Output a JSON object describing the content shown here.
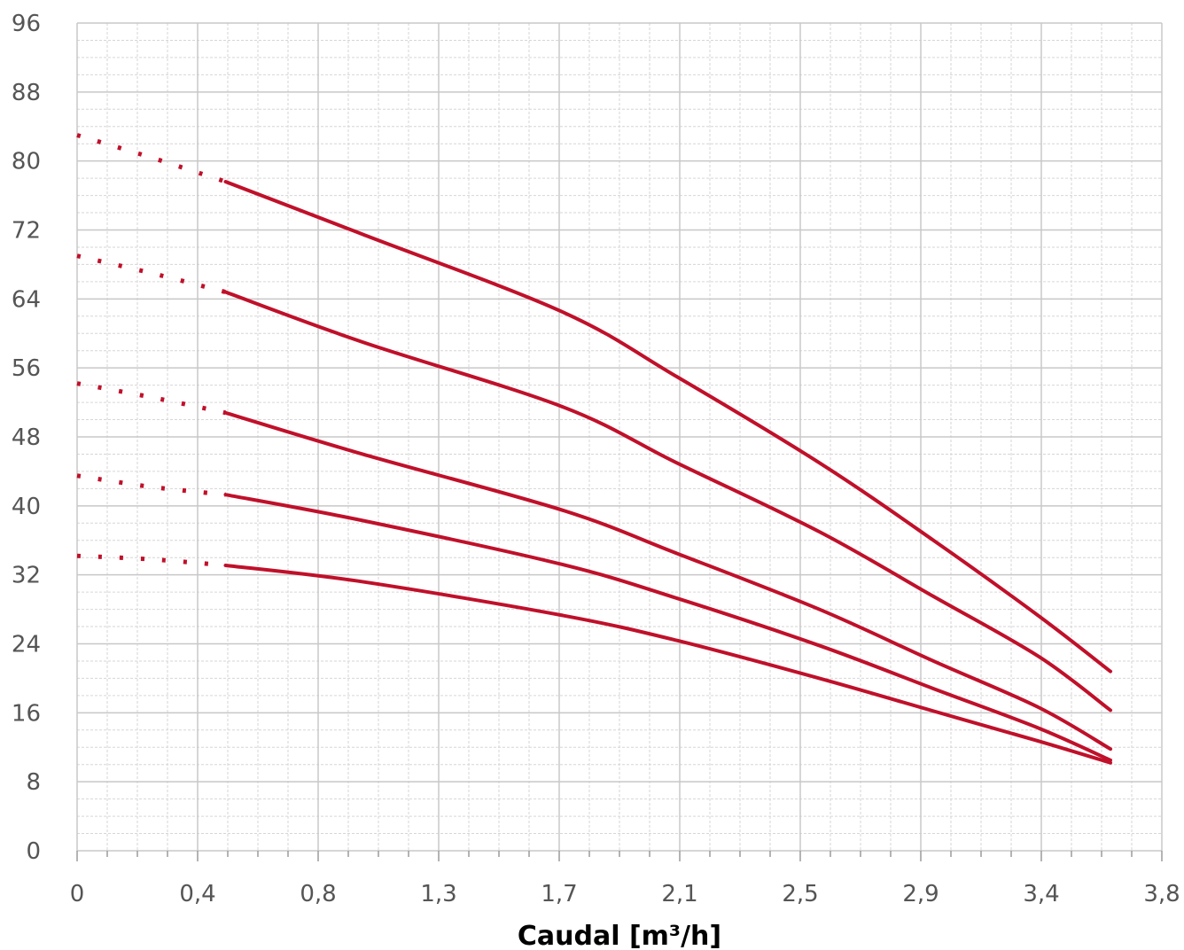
{
  "chart_data": {
    "type": "line",
    "xlabel": "Caudal [m³/h]",
    "ylabel": "",
    "title": "",
    "xlim": [
      0,
      3.8
    ],
    "ylim": [
      0,
      96
    ],
    "x_ticks": [
      "0",
      "0,4",
      "0,8",
      "1,3",
      "1,7",
      "2,1",
      "2,5",
      "2,9",
      "3,4",
      "3,8"
    ],
    "y_ticks": [
      "0",
      "8",
      "16",
      "24",
      "32",
      "40",
      "48",
      "56",
      "64",
      "72",
      "80",
      "88",
      "96"
    ],
    "grid": true,
    "line_color": "#c0102a",
    "series": [
      {
        "values_dotted": [
          [
            0,
            83
          ],
          [
            0.26,
            80.4
          ],
          [
            0.52,
            77.6
          ]
        ],
        "values": [
          [
            0.52,
            77.6
          ],
          [
            1.0,
            71.5
          ],
          [
            1.7,
            62.5
          ],
          [
            2.1,
            55
          ],
          [
            2.6,
            45
          ],
          [
            3.0,
            36
          ],
          [
            3.37,
            27.2
          ],
          [
            3.62,
            20.8
          ]
        ]
      },
      {
        "values_dotted": [
          [
            0,
            69
          ],
          [
            0.26,
            67
          ],
          [
            0.52,
            64.8
          ]
        ],
        "values": [
          [
            0.52,
            64.8
          ],
          [
            1.0,
            59
          ],
          [
            1.7,
            51.5
          ],
          [
            2.1,
            45
          ],
          [
            2.6,
            37
          ],
          [
            3.0,
            29.5
          ],
          [
            3.37,
            22.5
          ],
          [
            3.62,
            16.3
          ]
        ]
      },
      {
        "values_dotted": [
          [
            0,
            54.2
          ],
          [
            0.26,
            52.6
          ],
          [
            0.52,
            50.8
          ]
        ],
        "values": [
          [
            0.52,
            50.8
          ],
          [
            1.0,
            46
          ],
          [
            1.7,
            39.5
          ],
          [
            2.1,
            34.5
          ],
          [
            2.6,
            28
          ],
          [
            3.0,
            22
          ],
          [
            3.37,
            16.6
          ],
          [
            3.62,
            11.8
          ]
        ]
      },
      {
        "values_dotted": [
          [
            0,
            43.5
          ],
          [
            0.26,
            42.2
          ],
          [
            0.52,
            41.3
          ]
        ],
        "values": [
          [
            0.52,
            41.3
          ],
          [
            1.0,
            38.3
          ],
          [
            1.7,
            33.2
          ],
          [
            2.1,
            29.3
          ],
          [
            2.6,
            23.8
          ],
          [
            3.0,
            18.8
          ],
          [
            3.37,
            14.2
          ],
          [
            3.62,
            10.5
          ]
        ]
      },
      {
        "values_dotted": [
          [
            0,
            34.2
          ],
          [
            0.26,
            33.8
          ],
          [
            0.52,
            33.1
          ]
        ],
        "values": [
          [
            0.52,
            33.1
          ],
          [
            1.0,
            31.2
          ],
          [
            1.7,
            27.3
          ],
          [
            2.1,
            24.4
          ],
          [
            2.6,
            20
          ],
          [
            3.0,
            16.2
          ],
          [
            3.37,
            12.7
          ],
          [
            3.62,
            10.2
          ]
        ]
      }
    ]
  }
}
